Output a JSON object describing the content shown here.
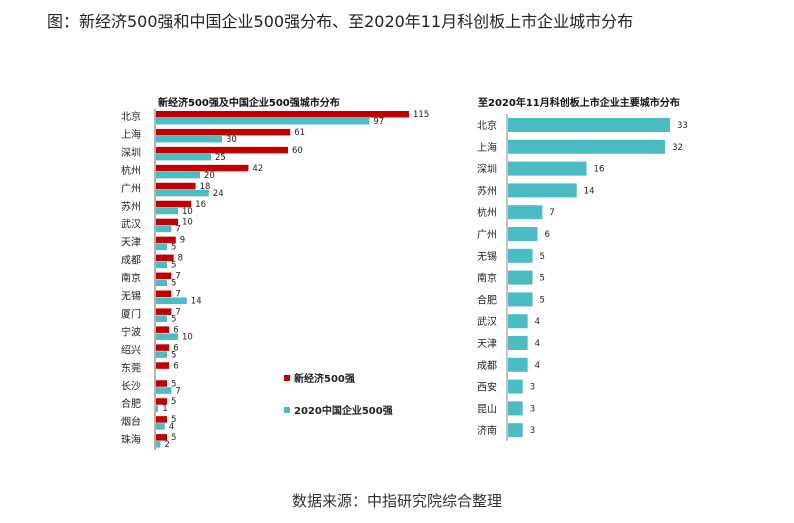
{
  "figure_title": "图：新经济500强和中国企业500强分布、至2020年11月科创板上市企业城市分布",
  "source": "数据来源：中指研究院综合整理",
  "colors": {
    "new_economy": "#c00000",
    "china500": "#4bbcc4",
    "star_market": "#4bbcc4"
  },
  "chart_data": [
    {
      "type": "bar",
      "orientation": "horizontal",
      "title": "新经济500强及中国企业500强城市分布",
      "categories": [
        "北京",
        "上海",
        "深圳",
        "杭州",
        "广州",
        "苏州",
        "武汉",
        "天津",
        "成都",
        "南京",
        "无锡",
        "厦门",
        "宁波",
        "绍兴",
        "东莞",
        "长沙",
        "合肥",
        "烟台",
        "珠海"
      ],
      "series": [
        {
          "name": "新经济500强",
          "values": [
            115,
            61,
            60,
            42,
            18,
            16,
            10,
            9,
            8,
            7,
            7,
            7,
            6,
            6,
            6,
            5,
            5,
            5,
            5
          ]
        },
        {
          "name": "2020中国企业500强",
          "values": [
            97,
            30,
            25,
            20,
            24,
            10,
            7,
            5,
            5,
            5,
            14,
            5,
            10,
            5,
            null,
            7,
            1,
            4,
            2
          ]
        }
      ],
      "legend": "right",
      "xlim": [
        0,
        115
      ]
    },
    {
      "type": "bar",
      "orientation": "horizontal",
      "title": "至2020年11月科创板上市企业主要城市分布",
      "categories": [
        "北京",
        "上海",
        "深圳",
        "苏州",
        "杭州",
        "广州",
        "无锡",
        "南京",
        "合肥",
        "武汉",
        "天津",
        "成都",
        "西安",
        "昆山",
        "济南"
      ],
      "values": [
        33,
        32,
        16,
        14,
        7,
        6,
        5,
        5,
        5,
        4,
        4,
        4,
        3,
        3,
        3
      ],
      "xlim": [
        0,
        33
      ]
    }
  ]
}
